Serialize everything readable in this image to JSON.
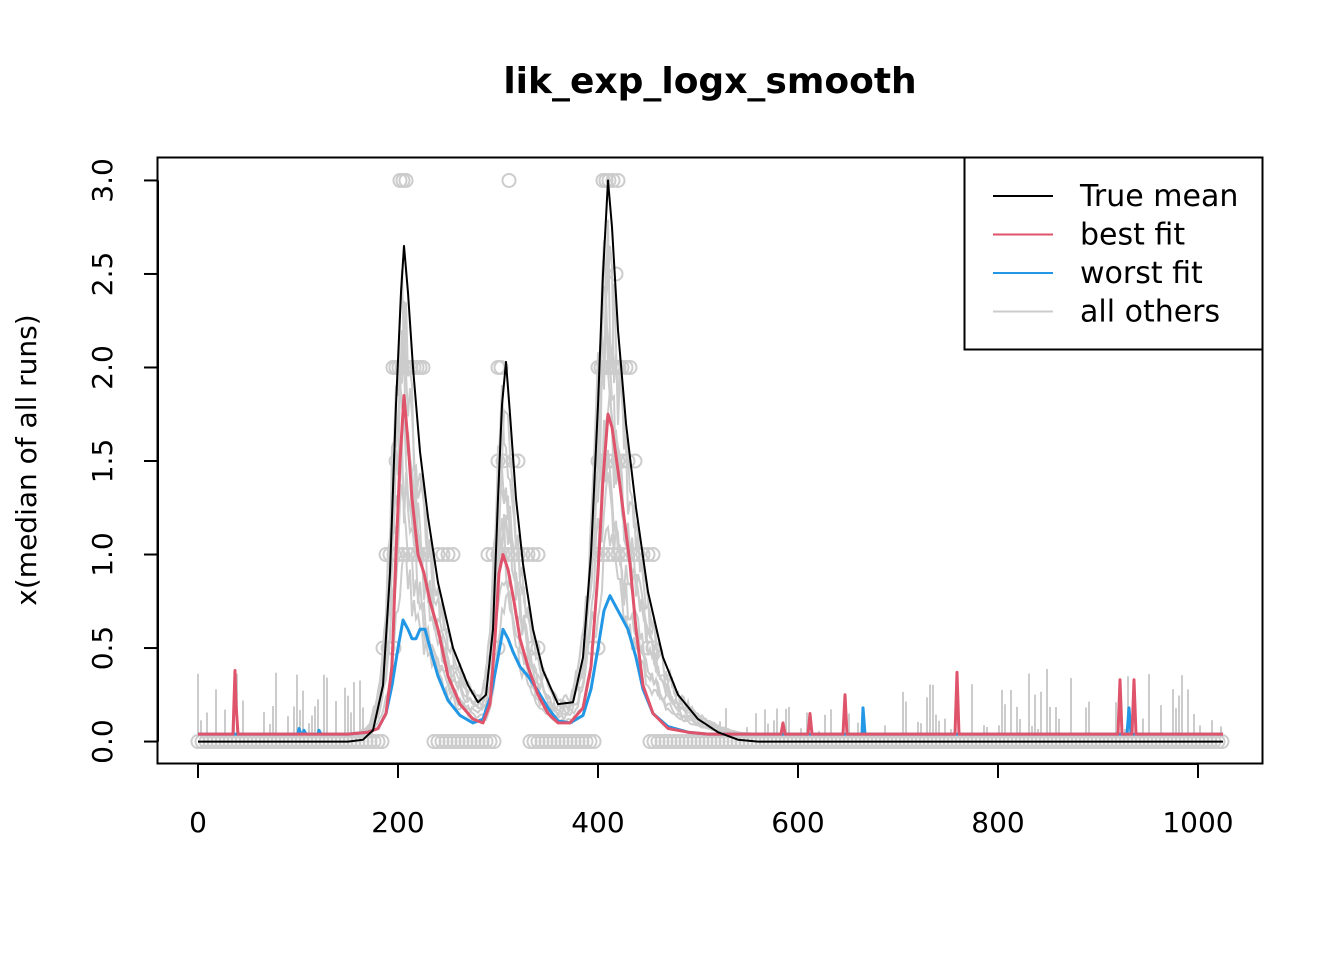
{
  "chart_data": {
    "type": "line",
    "title": "lik_exp_logx_smooth",
    "xlabel": "",
    "ylabel": "x(median of all runs)",
    "xlim": [
      -40,
      1065
    ],
    "ylim": [
      -0.12,
      3.12
    ],
    "x_ticks": [
      0,
      200,
      400,
      600,
      800,
      1000
    ],
    "y_ticks": [
      0.0,
      0.5,
      1.0,
      1.5,
      2.0,
      2.5,
      3.0
    ],
    "x_tick_labels": [
      "0",
      "200",
      "400",
      "600",
      "800",
      "1000"
    ],
    "y_tick_labels": [
      "0.0",
      "0.5",
      "1.0",
      "1.5",
      "2.0",
      "2.5",
      "3.0"
    ],
    "grid": false,
    "legend_position": "top-right",
    "colors": {
      "true_mean": "#000000",
      "best_fit": "#DF536B",
      "worst_fit": "#2297E6",
      "others": "#CCCCCC"
    },
    "legend": [
      {
        "label": "True mean",
        "color": "#000000"
      },
      {
        "label": "best fit",
        "color": "#DF536B"
      },
      {
        "label": "worst fit",
        "color": "#2297E6"
      },
      {
        "label": "all others",
        "color": "#CCCCCC"
      }
    ],
    "series": [
      {
        "name": "True mean",
        "color": "#000000",
        "x": [
          0,
          150,
          165,
          175,
          185,
          192,
          198,
          203,
          206,
          210,
          215,
          222,
          230,
          240,
          255,
          270,
          280,
          288,
          295,
          300,
          304,
          308,
          312,
          318,
          325,
          335,
          345,
          360,
          375,
          385,
          393,
          400,
          405,
          410,
          414,
          420,
          428,
          438,
          450,
          465,
          480,
          500,
          520,
          540,
          560,
          600,
          700,
          800,
          900,
          1000,
          1025
        ],
        "values": [
          0.0,
          0.0,
          0.01,
          0.06,
          0.3,
          0.9,
          1.8,
          2.4,
          2.65,
          2.4,
          2.0,
          1.55,
          1.2,
          0.85,
          0.5,
          0.3,
          0.21,
          0.25,
          0.6,
          1.3,
          1.8,
          2.03,
          1.75,
          1.3,
          0.95,
          0.6,
          0.38,
          0.2,
          0.21,
          0.45,
          1.0,
          1.8,
          2.5,
          3.0,
          2.75,
          2.2,
          1.7,
          1.25,
          0.8,
          0.45,
          0.25,
          0.12,
          0.05,
          0.01,
          0.0,
          0.0,
          0.0,
          0.0,
          0.0,
          0.0,
          0.0
        ]
      },
      {
        "name": "best fit",
        "color": "#DF536B",
        "x": [
          0,
          35,
          37,
          38,
          40,
          150,
          170,
          180,
          188,
          194,
          198,
          202,
          206,
          210,
          214,
          220,
          226,
          232,
          240,
          250,
          262,
          275,
          285,
          292,
          297,
          301,
          305,
          310,
          316,
          322,
          330,
          340,
          350,
          360,
          372,
          385,
          393,
          400,
          405,
          410,
          414,
          420,
          426,
          432,
          438,
          445,
          455,
          470,
          490,
          510,
          540,
          583,
          585,
          587,
          589,
          610,
          612,
          614,
          645,
          647,
          649,
          757,
          759,
          761,
          920,
          922,
          924,
          934,
          936,
          938,
          1025
        ],
        "values": [
          0.04,
          0.04,
          0.38,
          0.2,
          0.04,
          0.04,
          0.05,
          0.07,
          0.15,
          0.4,
          1.0,
          1.5,
          1.85,
          1.6,
          1.3,
          1.0,
          0.9,
          0.75,
          0.6,
          0.35,
          0.2,
          0.12,
          0.1,
          0.2,
          0.55,
          0.9,
          1.0,
          0.92,
          0.75,
          0.55,
          0.4,
          0.25,
          0.15,
          0.1,
          0.1,
          0.18,
          0.4,
          0.9,
          1.4,
          1.75,
          1.68,
          1.45,
          1.2,
          0.95,
          0.6,
          0.3,
          0.15,
          0.07,
          0.05,
          0.04,
          0.04,
          0.04,
          0.1,
          0.04,
          0.04,
          0.04,
          0.15,
          0.04,
          0.04,
          0.25,
          0.04,
          0.04,
          0.37,
          0.04,
          0.04,
          0.33,
          0.04,
          0.04,
          0.33,
          0.04,
          0.04
        ]
      },
      {
        "name": "worst fit",
        "color": "#2297E6",
        "x": [
          0,
          100,
          101,
          103,
          105,
          106,
          108,
          120,
          121,
          123,
          150,
          170,
          180,
          188,
          194,
          200,
          205,
          210,
          214,
          218,
          222,
          227,
          232,
          240,
          250,
          262,
          275,
          285,
          293,
          300,
          305,
          310,
          315,
          322,
          330,
          340,
          350,
          360,
          372,
          385,
          393,
          400,
          406,
          412,
          418,
          424,
          430,
          438,
          445,
          455,
          470,
          490,
          510,
          540,
          664,
          665,
          667,
          929,
          931,
          933,
          1025
        ],
        "values": [
          0.04,
          0.04,
          0.07,
          0.04,
          0.04,
          0.06,
          0.04,
          0.04,
          0.06,
          0.04,
          0.04,
          0.05,
          0.07,
          0.15,
          0.3,
          0.5,
          0.65,
          0.6,
          0.55,
          0.55,
          0.6,
          0.6,
          0.5,
          0.35,
          0.22,
          0.14,
          0.1,
          0.12,
          0.25,
          0.45,
          0.6,
          0.55,
          0.48,
          0.4,
          0.35,
          0.27,
          0.18,
          0.11,
          0.1,
          0.14,
          0.28,
          0.5,
          0.7,
          0.78,
          0.72,
          0.66,
          0.6,
          0.45,
          0.28,
          0.15,
          0.08,
          0.05,
          0.04,
          0.04,
          0.04,
          0.18,
          0.04,
          0.04,
          0.18,
          0.04,
          0.04
        ]
      }
    ],
    "others_description": "many grey run traces plus grey circle markers at observed values 0, 0.5, 1.0, 1.5, 2.0, 2.5, 3.0"
  }
}
